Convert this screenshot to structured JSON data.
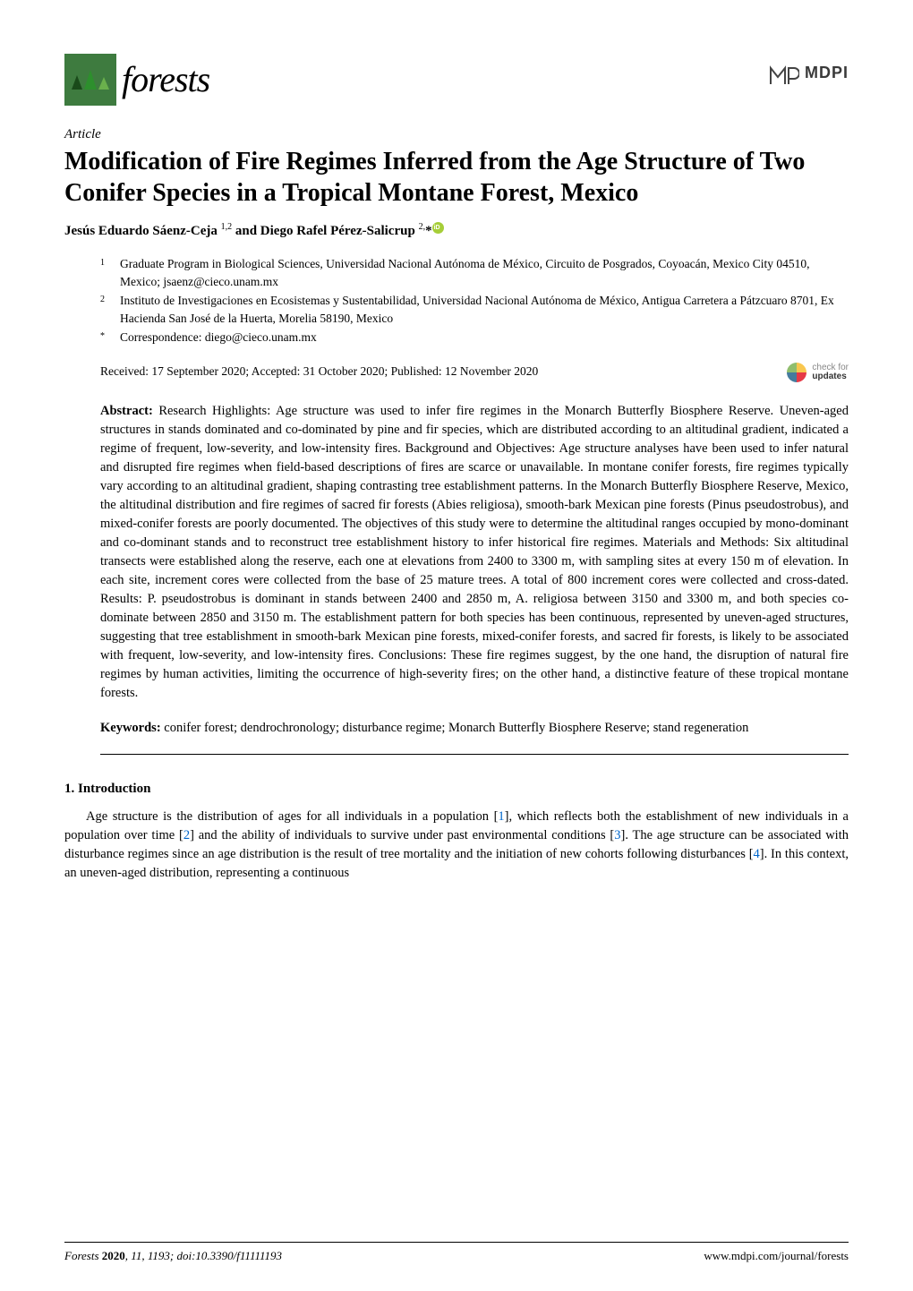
{
  "journal": {
    "name": "forests",
    "publisher": "MDPI"
  },
  "article": {
    "type": "Article",
    "title": "Modification of Fire Regimes Inferred from the Age Structure of Two Conifer Species in a Tropical Montane Forest, Mexico",
    "authors_html": "Jesús Eduardo Sáenz-Ceja <sup>1,2</sup> and Diego Rafel Pérez-Salicrup <sup>2,</sup>*",
    "affiliations": [
      {
        "num": "1",
        "text": "Graduate Program in Biological Sciences, Universidad Nacional Autónoma de México, Circuito de Posgrados, Coyoacán, Mexico City 04510, Mexico; jsaenz@cieco.unam.mx"
      },
      {
        "num": "2",
        "text": "Instituto de Investigaciones en Ecosistemas y Sustentabilidad, Universidad Nacional Autónoma de México, Antigua Carretera a Pátzcuaro 8701, Ex Hacienda San José de la Huerta, Morelia 58190, Mexico"
      },
      {
        "num": "*",
        "text": "Correspondence: diego@cieco.unam.mx"
      }
    ],
    "dates": "Received: 17 September 2020; Accepted: 31 October 2020; Published: 12 November 2020",
    "check_updates_l1": "check for",
    "check_updates_l2": "updates"
  },
  "abstract": {
    "label": "Abstract:",
    "text": " Research Highlights: Age structure was used to infer fire regimes in the Monarch Butterfly Biosphere Reserve. Uneven-aged structures in stands dominated and co-dominated by pine and fir species, which are distributed according to an altitudinal gradient, indicated a regime of frequent, low-severity, and low-intensity fires. Background and Objectives: Age structure analyses have been used to infer natural and disrupted fire regimes when field-based descriptions of fires are scarce or unavailable. In montane conifer forests, fire regimes typically vary according to an altitudinal gradient, shaping contrasting tree establishment patterns. In the Monarch Butterfly Biosphere Reserve, Mexico, the altitudinal distribution and fire regimes of sacred fir forests (Abies religiosa), smooth-bark Mexican pine forests (Pinus pseudostrobus), and mixed-conifer forests are poorly documented. The objectives of this study were to determine the altitudinal ranges occupied by mono-dominant and co-dominant stands and to reconstruct tree establishment history to infer historical fire regimes. Materials and Methods: Six altitudinal transects were established along the reserve, each one at elevations from 2400 to 3300 m, with sampling sites at every 150 m of elevation. In each site, increment cores were collected from the base of 25 mature trees. A total of 800 increment cores were collected and cross-dated. Results: P. pseudostrobus is dominant in stands between 2400 and 2850 m, A. religiosa between 3150 and 3300 m, and both species co-dominate between 2850 and 3150 m. The establishment pattern for both species has been continuous, represented by uneven-aged structures, suggesting that tree establishment in smooth-bark Mexican pine forests, mixed-conifer forests, and sacred fir forests, is likely to be associated with frequent, low-severity, and low-intensity fires. Conclusions: These fire regimes suggest, by the one hand, the disruption of natural fire regimes by human activities, limiting the occurrence of high-severity fires; on the other hand, a distinctive feature of these tropical montane forests."
  },
  "keywords": {
    "label": "Keywords:",
    "text": " conifer forest; dendrochronology; disturbance regime; Monarch Butterfly Biosphere Reserve; stand regeneration"
  },
  "section1": {
    "heading": "1. Introduction",
    "para1_pre": "Age structure is the distribution of ages for all individuals in a population [",
    "ref1": "1",
    "para1_mid1": "], which reflects both the establishment of new individuals in a population over time [",
    "ref2": "2",
    "para1_mid2": "] and the ability of individuals to survive under past environmental conditions [",
    "ref3": "3",
    "para1_mid3": "]. The age structure can be associated with disturbance regimes since an age distribution is the result of tree mortality and the initiation of new cohorts following disturbances [",
    "ref4": "4",
    "para1_end": "]. In this context, an uneven-aged distribution, representing a continuous"
  },
  "footer": {
    "journal": "Forests",
    "year": "2020",
    "volume": "11",
    "article_no": "1193",
    "doi": "doi:10.3390/f11111193",
    "url": "www.mdpi.com/journal/forests"
  },
  "colors": {
    "link": "#0066cc",
    "orcid": "#a6ce39",
    "logo_bg": "#3e7b3f"
  }
}
